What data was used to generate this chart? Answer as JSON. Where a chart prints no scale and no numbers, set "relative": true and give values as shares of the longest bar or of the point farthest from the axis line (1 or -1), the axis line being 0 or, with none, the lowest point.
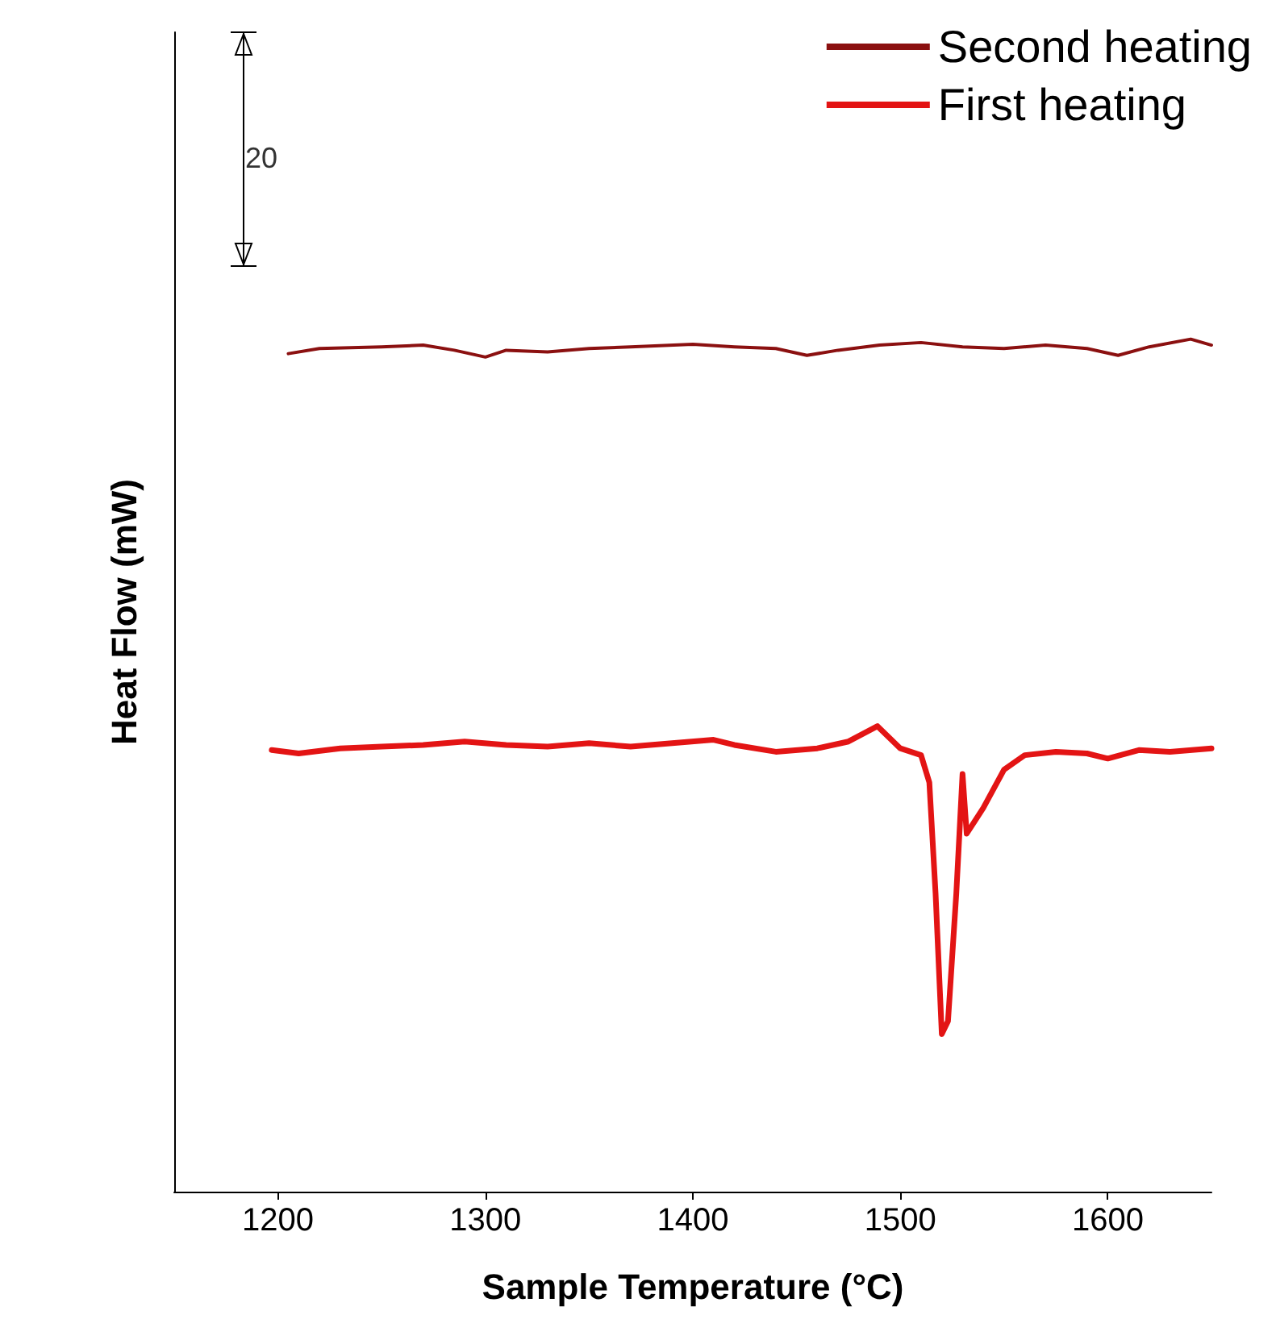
{
  "chart_data": {
    "type": "line",
    "relative": true,
    "xlabel": "Sample Temperature (°C)",
    "ylabel": "Heat Flow (mW)",
    "xlim": [
      1150,
      1650
    ],
    "xticks": [
      1200,
      1300,
      1400,
      1500,
      1600
    ],
    "legend": "top right",
    "grid": false,
    "marker": "none",
    "annotations": [
      "20"
    ],
    "series": [
      {
        "name": "Second heating",
        "color": "#8b1010",
        "x": [
          1205,
          1220,
          1250,
          1270,
          1285,
          1300,
          1310,
          1330,
          1350,
          1370,
          1400,
          1420,
          1440,
          1455,
          1470,
          1490,
          1510,
          1530,
          1550,
          1570,
          1590,
          1605,
          1620,
          1640,
          1650
        ],
        "values": [
          0.983,
          0.989,
          0.991,
          0.993,
          0.987,
          0.979,
          0.987,
          0.985,
          0.989,
          0.991,
          0.994,
          0.991,
          0.989,
          0.981,
          0.987,
          0.993,
          0.996,
          0.991,
          0.989,
          0.993,
          0.989,
          0.981,
          0.991,
          1.0,
          0.993
        ]
      },
      {
        "name": "First heating",
        "color": "#e31414",
        "x": [
          1197,
          1210,
          1230,
          1250,
          1270,
          1290,
          1310,
          1330,
          1350,
          1370,
          1390,
          1410,
          1420,
          1440,
          1460,
          1475,
          1489,
          1500,
          1510,
          1514,
          1517,
          1520,
          1523,
          1527,
          1530,
          1532,
          1540,
          1550,
          1560,
          1575,
          1590,
          1600,
          1615,
          1630,
          1650
        ],
        "values": [
          0.518,
          0.514,
          0.52,
          0.522,
          0.524,
          0.528,
          0.524,
          0.522,
          0.526,
          0.522,
          0.526,
          0.53,
          0.524,
          0.516,
          0.52,
          0.528,
          0.546,
          0.52,
          0.512,
          0.48,
          0.35,
          0.185,
          0.2,
          0.35,
          0.49,
          0.42,
          0.45,
          0.495,
          0.512,
          0.516,
          0.514,
          0.508,
          0.518,
          0.516,
          0.52
        ]
      }
    ]
  }
}
